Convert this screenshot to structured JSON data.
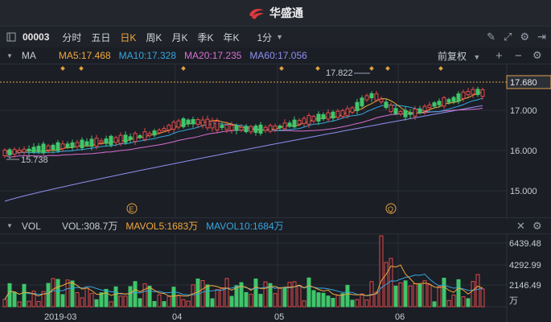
{
  "app": {
    "title": "华盛通"
  },
  "toolbar": {
    "code": "00003",
    "periods": [
      "分时",
      "五日",
      "日K",
      "周K",
      "月K",
      "季K",
      "年K"
    ],
    "active_period": "日K",
    "minute": "1分"
  },
  "ma_bar": {
    "label": "MA",
    "ma5": "MA5:17.468",
    "ma10": "MA10:17.328",
    "ma20": "MA20:17.235",
    "ma60": "MA60:17.056",
    "adjust": "前复权"
  },
  "colors": {
    "ma5": "#f2a93b",
    "ma10": "#36a6e0",
    "ma20": "#d86fd0",
    "ma60": "#8f8ff0",
    "up": "#e24a4a",
    "down": "#3fc66a"
  },
  "price_axis": {
    "labels": [
      "17.680",
      "17.000",
      "16.000",
      "15.000"
    ],
    "current": "17.680"
  },
  "annotations": {
    "high": "17.822",
    "low": "15.738",
    "marker_e": "E",
    "marker_q": "Q"
  },
  "vol_bar": {
    "label": "VOL",
    "vol": "VOL:308.7万",
    "mavol5": "MAVOL5:1683万",
    "mavol10": "MAVOL10:1684万"
  },
  "vol_axis": {
    "labels": [
      "6439.48",
      "4292.99",
      "2146.49",
      "万"
    ]
  },
  "x_axis": {
    "labels": [
      "2019-03",
      "04",
      "05",
      "06"
    ]
  }
}
